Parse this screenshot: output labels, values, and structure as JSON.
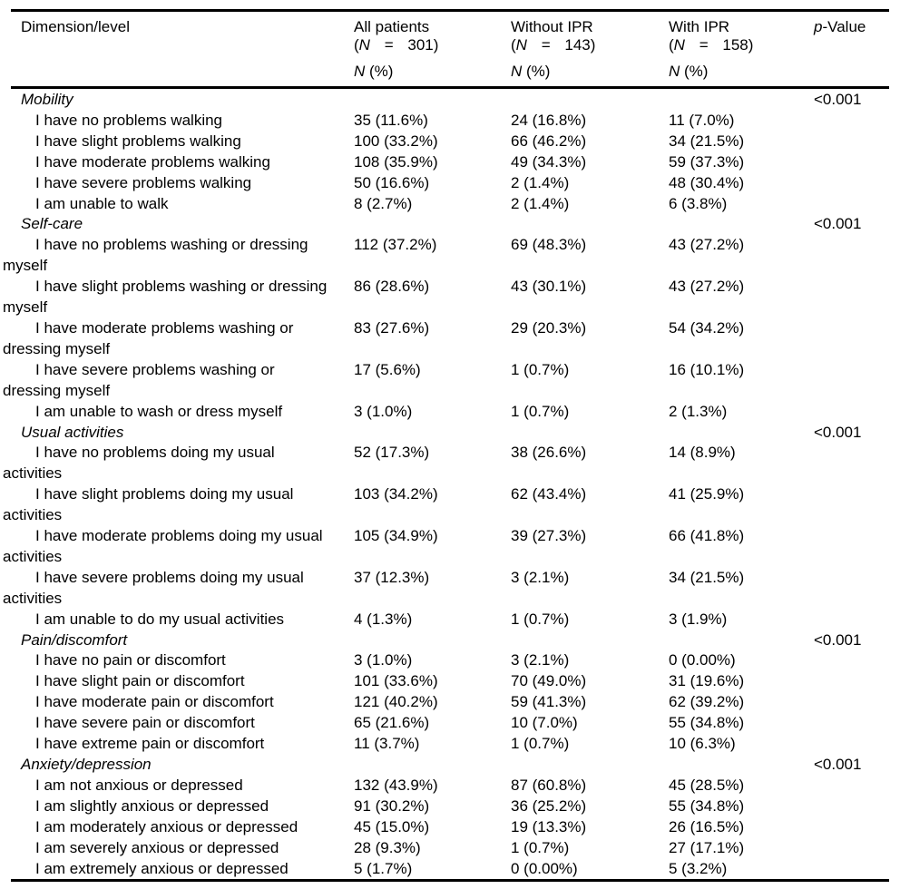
{
  "table": {
    "header": {
      "dimension_col": "Dimension/level",
      "paren_open": "(",
      "n_symbol": "N",
      "equals": "=",
      "paren_close": ")",
      "sub_n": "N",
      "sub_pct": " (%)",
      "p_symbol": "p",
      "p_rest": "-Value",
      "stat_columns": [
        {
          "title": "All patients",
          "n": "301"
        },
        {
          "title": "Without IPR",
          "n": "143"
        },
        {
          "title": "With IPR",
          "n": "158"
        }
      ]
    },
    "sections": [
      {
        "name": "Mobility",
        "p_value": "<0.001",
        "rows": [
          {
            "label": "I have no problems walking",
            "all_patients": "35 (11.6%)",
            "without_ipr": "24 (16.8%)",
            "with_ipr": "11 (7.0%)"
          },
          {
            "label": "I have slight problems walking",
            "all_patients": "100 (33.2%)",
            "without_ipr": "66 (46.2%)",
            "with_ipr": "34 (21.5%)"
          },
          {
            "label": "I have moderate problems walking",
            "all_patients": "108 (35.9%)",
            "without_ipr": "49 (34.3%)",
            "with_ipr": "59 (37.3%)"
          },
          {
            "label": "I have severe problems walking",
            "all_patients": "50 (16.6%)",
            "without_ipr": "2 (1.4%)",
            "with_ipr": "48 (30.4%)"
          },
          {
            "label": "I am unable to walk",
            "all_patients": "8 (2.7%)",
            "without_ipr": "2 (1.4%)",
            "with_ipr": "6 (3.8%)"
          }
        ]
      },
      {
        "name": "Self-care",
        "p_value": "<0.001",
        "rows": [
          {
            "label": "I have no problems washing or dressing\nmyself",
            "all_patients": "112 (37.2%)",
            "without_ipr": "69 (48.3%)",
            "with_ipr": "43 (27.2%)"
          },
          {
            "label": "I have slight problems washing or dressing\nmyself",
            "all_patients": "86 (28.6%)",
            "without_ipr": "43 (30.1%)",
            "with_ipr": "43 (27.2%)"
          },
          {
            "label": "I have moderate problems washing or\ndressing myself",
            "all_patients": "83 (27.6%)",
            "without_ipr": "29 (20.3%)",
            "with_ipr": "54 (34.2%)"
          },
          {
            "label": "I have severe problems washing or\ndressing myself",
            "all_patients": "17 (5.6%)",
            "without_ipr": "1 (0.7%)",
            "with_ipr": "16 (10.1%)"
          },
          {
            "label": "I am unable to wash or dress myself",
            "all_patients": "3 (1.0%)",
            "without_ipr": "1 (0.7%)",
            "with_ipr": "2 (1.3%)"
          }
        ]
      },
      {
        "name": "Usual activities",
        "p_value": "<0.001",
        "rows": [
          {
            "label": "I have no problems doing my usual\nactivities",
            "all_patients": "52 (17.3%)",
            "without_ipr": "38 (26.6%)",
            "with_ipr": "14 (8.9%)"
          },
          {
            "label": "I have slight problems doing my usual\nactivities",
            "all_patients": "103 (34.2%)",
            "without_ipr": "62 (43.4%)",
            "with_ipr": "41 (25.9%)"
          },
          {
            "label": "I have moderate problems doing my usual\nactivities",
            "all_patients": "105 (34.9%)",
            "without_ipr": "39 (27.3%)",
            "with_ipr": "66 (41.8%)"
          },
          {
            "label": "I have severe problems doing my usual\nactivities",
            "all_patients": "37 (12.3%)",
            "without_ipr": "3 (2.1%)",
            "with_ipr": "34 (21.5%)"
          },
          {
            "label": "I am unable to do my usual activities",
            "all_patients": "4 (1.3%)",
            "without_ipr": "1 (0.7%)",
            "with_ipr": "3 (1.9%)"
          }
        ]
      },
      {
        "name": "Pain/discomfort",
        "p_value": "<0.001",
        "rows": [
          {
            "label": "I have no pain or discomfort",
            "all_patients": "3 (1.0%)",
            "without_ipr": "3 (2.1%)",
            "with_ipr": "0 (0.00%)"
          },
          {
            "label": "I have slight pain or discomfort",
            "all_patients": "101 (33.6%)",
            "without_ipr": "70 (49.0%)",
            "with_ipr": "31 (19.6%)"
          },
          {
            "label": "I have moderate pain or discomfort",
            "all_patients": "121 (40.2%)",
            "without_ipr": "59 (41.3%)",
            "with_ipr": "62 (39.2%)"
          },
          {
            "label": "I have severe pain or discomfort",
            "all_patients": "65 (21.6%)",
            "without_ipr": "10 (7.0%)",
            "with_ipr": "55 (34.8%)"
          },
          {
            "label": "I have extreme pain or discomfort",
            "all_patients": "11 (3.7%)",
            "without_ipr": "1 (0.7%)",
            "with_ipr": "10 (6.3%)"
          }
        ]
      },
      {
        "name": "Anxiety/depression",
        "p_value": "<0.001",
        "rows": [
          {
            "label": "I am not anxious or depressed",
            "all_patients": "132 (43.9%)",
            "without_ipr": "87 (60.8%)",
            "with_ipr": "45 (28.5%)"
          },
          {
            "label": "I am slightly anxious or depressed",
            "all_patients": "91 (30.2%)",
            "without_ipr": "36 (25.2%)",
            "with_ipr": "55 (34.8%)"
          },
          {
            "label": "I am moderately anxious or depressed",
            "all_patients": "45 (15.0%)",
            "without_ipr": "19 (13.3%)",
            "with_ipr": "26 (16.5%)"
          },
          {
            "label": "I am severely anxious or depressed",
            "all_patients": "28 (9.3%)",
            "without_ipr": "1 (0.7%)",
            "with_ipr": "27 (17.1%)"
          },
          {
            "label": "I am extremely anxious or depressed",
            "all_patients": "5 (1.7%)",
            "without_ipr": "0 (0.00%)",
            "with_ipr": "5 (3.2%)"
          }
        ]
      }
    ]
  }
}
